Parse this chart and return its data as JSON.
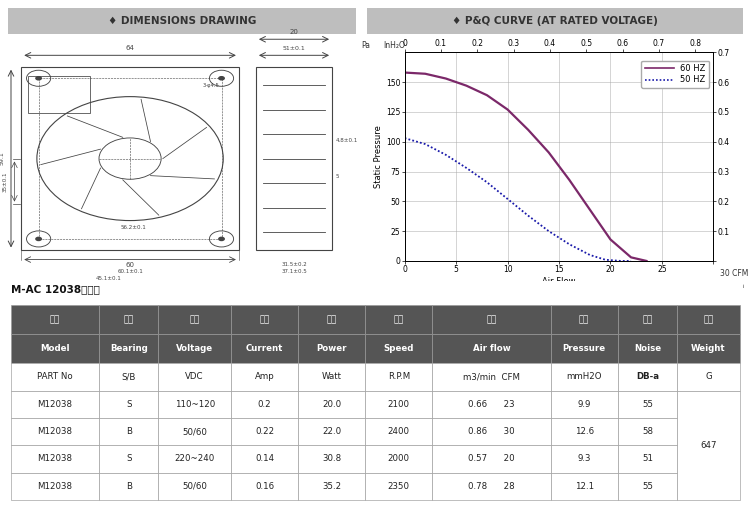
{
  "title_left": "♦ DIMENSIONS DRAWING",
  "title_right": "♦ P&Q CURVE (AT RATED VOLTAGE)",
  "subtitle": "M-AC 12038鼓風機",
  "header_bg": "#bebebe",
  "curve_60hz_color": "#7b2869",
  "curve_50hz_color": "#1a1aaa",
  "curve_60hz": {
    "x": [
      0,
      2,
      4,
      6,
      8,
      10,
      12,
      14,
      16,
      18,
      20,
      22,
      23.5
    ],
    "y": [
      158,
      157,
      153,
      147,
      139,
      127,
      110,
      91,
      68,
      43,
      18,
      3,
      0
    ]
  },
  "curve_50hz": {
    "x": [
      0,
      2,
      4,
      6,
      8,
      10,
      12,
      14,
      16,
      18,
      19.5,
      21,
      22
    ],
    "y": [
      103,
      98,
      89,
      78,
      66,
      52,
      38,
      25,
      14,
      5,
      1,
      0,
      0
    ]
  },
  "table_cn_row": [
    "型号",
    "軸承",
    "電壓",
    "電流",
    "功率",
    "轉速",
    "風量",
    "風壓",
    "噪音",
    "重量"
  ],
  "table_en_row": [
    "Model",
    "Bearing",
    "Voltage",
    "Current",
    "Power",
    "Speed",
    "Air flow",
    "Pressure",
    "Noise",
    "Weight"
  ],
  "table_unit_row": [
    "PART No",
    "S/B",
    "VDC",
    "Amp",
    "Watt",
    "R.P.M",
    "m3/min  CFM",
    "mmH2O",
    "DB-a",
    "G"
  ],
  "table_data": [
    [
      "M12038",
      "S",
      "110~120",
      "0.2",
      "20.0",
      "2100",
      "0.66      23",
      "9.9",
      "55",
      ""
    ],
    [
      "M12038",
      "B",
      "50/60",
      "0.22",
      "22.0",
      "2400",
      "0.86      30",
      "12.6",
      "58",
      "647"
    ],
    [
      "M12038",
      "S",
      "220~240",
      "0.14",
      "30.8",
      "2000",
      "0.57      20",
      "9.3",
      "51",
      ""
    ],
    [
      "M12038",
      "B",
      "50/60",
      "0.16",
      "35.2",
      "2350",
      "0.78      28",
      "12.1",
      "55",
      ""
    ]
  ],
  "col_widths_rel": [
    1.15,
    0.78,
    0.95,
    0.88,
    0.88,
    0.88,
    1.55,
    0.88,
    0.78,
    0.82
  ],
  "grid_color": "#aaaaaa",
  "dark_header": "#555555",
  "line_color": "#999999"
}
